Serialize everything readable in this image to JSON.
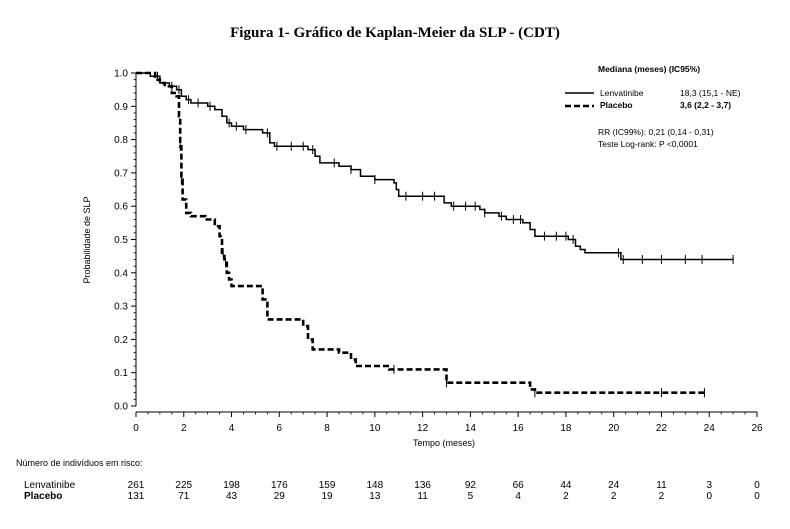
{
  "chart_data": {
    "type": "line",
    "title": "Figura 1- Gráfico de Kaplan-Meier da SLP - (CDT)",
    "xlabel": "Tempo (meses)",
    "ylabel": "Probabilidade de SLP",
    "xlim": [
      0,
      26
    ],
    "ylim": [
      0.0,
      1.0
    ],
    "x_ticks": [
      "0",
      "2",
      "4",
      "6",
      "8",
      "10",
      "12",
      "14",
      "16",
      "18",
      "20",
      "22",
      "24",
      "26"
    ],
    "y_ticks": [
      "0.0",
      "0.1",
      "0.2",
      "0.3",
      "0.4",
      "0.5",
      "0.6",
      "0.7",
      "0.8",
      "0.9",
      "1.0"
    ],
    "legend": {
      "header": "Mediana (meses) (IC95%)",
      "placement": "top-right",
      "entries": [
        {
          "name": "Lenvatinibe",
          "value": "18,3 (15,1 - NE)"
        },
        {
          "name": "Placebo",
          "value": "3,6 (2,2 - 3,7)"
        }
      ],
      "hr_text": "RR (IC99%): 0,21 (0,14 - 0,31)",
      "logrank_text": "Teste Log-rank: P <0,0001"
    },
    "series": [
      {
        "name": "Lenvatinibe",
        "style": "solid",
        "points": [
          [
            0,
            1.0
          ],
          [
            0.6,
            0.99
          ],
          [
            1.0,
            0.97
          ],
          [
            1.4,
            0.96
          ],
          [
            1.7,
            0.95
          ],
          [
            1.9,
            0.93
          ],
          [
            2.1,
            0.92
          ],
          [
            2.3,
            0.91
          ],
          [
            3.0,
            0.9
          ],
          [
            3.3,
            0.89
          ],
          [
            3.6,
            0.87
          ],
          [
            3.8,
            0.85
          ],
          [
            4.0,
            0.84
          ],
          [
            4.5,
            0.83
          ],
          [
            5.3,
            0.82
          ],
          [
            5.6,
            0.79
          ],
          [
            5.8,
            0.78
          ],
          [
            7.2,
            0.77
          ],
          [
            7.5,
            0.75
          ],
          [
            7.7,
            0.73
          ],
          [
            8.5,
            0.72
          ],
          [
            9.0,
            0.71
          ],
          [
            9.4,
            0.69
          ],
          [
            10.0,
            0.68
          ],
          [
            10.8,
            0.67
          ],
          [
            10.9,
            0.65
          ],
          [
            11.0,
            0.63
          ],
          [
            12.9,
            0.61
          ],
          [
            13.2,
            0.6
          ],
          [
            14.4,
            0.59
          ],
          [
            14.6,
            0.58
          ],
          [
            15.2,
            0.57
          ],
          [
            15.5,
            0.56
          ],
          [
            16.2,
            0.55
          ],
          [
            16.5,
            0.53
          ],
          [
            16.7,
            0.51
          ],
          [
            18.1,
            0.5
          ],
          [
            18.4,
            0.48
          ],
          [
            18.6,
            0.47
          ],
          [
            18.8,
            0.46
          ],
          [
            20.3,
            0.44
          ],
          [
            25.0,
            0.44
          ]
        ],
        "censored_x": [
          0.9,
          1.5,
          1.8,
          2.2,
          2.6,
          3.1,
          3.9,
          4.2,
          4.6,
          5.5,
          5.9,
          6.5,
          7.0,
          7.4,
          8.3,
          9.0,
          10.0,
          11.3,
          12.0,
          12.5,
          13.3,
          13.8,
          14.2,
          14.6,
          15.3,
          15.8,
          16.1,
          17.1,
          17.6,
          18.0,
          18.3,
          20.2,
          20.4,
          21.2,
          22.0,
          23.0,
          23.7,
          25.0
        ]
      },
      {
        "name": "Placebo",
        "style": "dashed",
        "points": [
          [
            0,
            1.0
          ],
          [
            0.8,
            0.98
          ],
          [
            1.0,
            0.97
          ],
          [
            1.2,
            0.96
          ],
          [
            1.5,
            0.94
          ],
          [
            1.7,
            0.93
          ],
          [
            1.8,
            0.87
          ],
          [
            1.85,
            0.78
          ],
          [
            1.9,
            0.68
          ],
          [
            1.95,
            0.62
          ],
          [
            2.1,
            0.58
          ],
          [
            2.3,
            0.57
          ],
          [
            2.9,
            0.56
          ],
          [
            3.3,
            0.54
          ],
          [
            3.5,
            0.51
          ],
          [
            3.6,
            0.46
          ],
          [
            3.7,
            0.43
          ],
          [
            3.8,
            0.4
          ],
          [
            3.9,
            0.38
          ],
          [
            4.0,
            0.36
          ],
          [
            5.3,
            0.32
          ],
          [
            5.5,
            0.26
          ],
          [
            7.0,
            0.24
          ],
          [
            7.2,
            0.2
          ],
          [
            7.4,
            0.17
          ],
          [
            8.5,
            0.16
          ],
          [
            9.0,
            0.14
          ],
          [
            9.2,
            0.12
          ],
          [
            10.6,
            0.11
          ],
          [
            13.0,
            0.07
          ],
          [
            16.5,
            0.05
          ],
          [
            16.7,
            0.04
          ],
          [
            23.8,
            0.04
          ]
        ],
        "censored_x": [
          1.85,
          1.9,
          3.65,
          3.75,
          10.8,
          13.0,
          16.7,
          22.0,
          23.8
        ]
      }
    ],
    "risk_table": {
      "title": "Número de indivíduos em risco:",
      "rows": [
        {
          "label": "Lenvatinibe",
          "counts": [
            "261",
            "225",
            "198",
            "176",
            "159",
            "148",
            "136",
            "92",
            "66",
            "44",
            "24",
            "11",
            "3",
            "0"
          ]
        },
        {
          "label": "Placebo",
          "counts": [
            "131",
            "71",
            "43",
            "29",
            "19",
            "13",
            "11",
            "5",
            "4",
            "2",
            "2",
            "2",
            "0",
            "0"
          ]
        }
      ]
    }
  }
}
